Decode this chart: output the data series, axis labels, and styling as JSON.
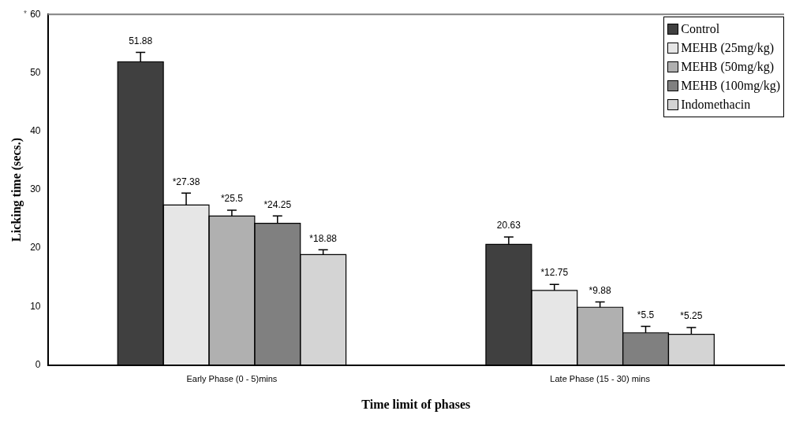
{
  "chart_data": {
    "type": "bar",
    "xlabel": "Time limit of phases",
    "ylabel": "Licking time (secs.)",
    "categories": [
      "Early Phase (0 - 5)mins",
      "Late Phase (15 - 30) mins"
    ],
    "series": [
      {
        "name": "Control",
        "color": "#404040",
        "values": [
          51.88,
          20.63
        ],
        "errors": [
          [
            51.88,
            53.5
          ],
          [
            20.63,
            21.9
          ]
        ],
        "value_labels": [
          "51.88",
          "20.63"
        ]
      },
      {
        "name": "MEHB (25mg/kg)",
        "color": "#e6e6e6",
        "values": [
          27.38,
          12.75
        ],
        "errors": [
          [
            27.38,
            29.4
          ],
          [
            12.75,
            13.8
          ]
        ],
        "value_labels": [
          "*27.38",
          "*12.75"
        ]
      },
      {
        "name": "MEHB (50mg/kg)",
        "color": "#b0b0b0",
        "values": [
          25.5,
          9.88
        ],
        "errors": [
          [
            25.5,
            26.5
          ],
          [
            9.88,
            10.8
          ]
        ],
        "value_labels": [
          "*25.5",
          "*9.88"
        ]
      },
      {
        "name": "MEHB (100mg/kg)",
        "color": "#808080",
        "values": [
          24.25,
          5.5
        ],
        "errors": [
          [
            24.25,
            25.5
          ],
          [
            5.5,
            6.6
          ]
        ],
        "value_labels": [
          "*24.25",
          "*5.5"
        ]
      },
      {
        "name": "Indomethacin",
        "color": "#d4d4d4",
        "values": [
          18.88,
          5.25
        ],
        "errors": [
          [
            18.88,
            19.7
          ],
          [
            5.25,
            6.4
          ]
        ],
        "value_labels": [
          "*18.88",
          "*5.25"
        ]
      }
    ],
    "ylim": [
      0,
      60
    ],
    "yticks": [
      0,
      10,
      20,
      30,
      40,
      50,
      60
    ],
    "grid": false,
    "legend": "top right",
    "annotations": [
      "*"
    ]
  }
}
